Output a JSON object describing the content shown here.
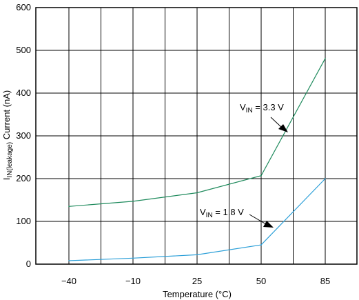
{
  "chart_data": {
    "type": "line",
    "xlabel": "Temperature (°C)",
    "ylabel_main": "I",
    "ylabel_sub": "IN(leakage)",
    "ylabel_rest": " Current (nA)",
    "x_ticks": [
      "−40",
      "−10",
      "25",
      "50",
      "85"
    ],
    "y_ticks": [
      "0",
      "100",
      "200",
      "300",
      "400",
      "500",
      "600"
    ],
    "ylim": [
      0,
      600
    ],
    "grid": true,
    "x": [
      -40,
      -10,
      25,
      50,
      85
    ],
    "series": [
      {
        "name": "V_IN = 3.3 V",
        "color": "#1e8a5c",
        "values": [
          135,
          147,
          167,
          207,
          481
        ]
      },
      {
        "name": "V_IN = 1.8 V",
        "color": "#2b9fd8",
        "values": [
          8,
          14,
          22,
          45,
          200
        ]
      }
    ],
    "annotations": [
      {
        "main": "V",
        "sub": "IN",
        "rest": " = 3.3 V",
        "series": 0
      },
      {
        "main": "V",
        "sub": "IN",
        "rest": " = 1.8 V",
        "series": 1
      }
    ]
  }
}
